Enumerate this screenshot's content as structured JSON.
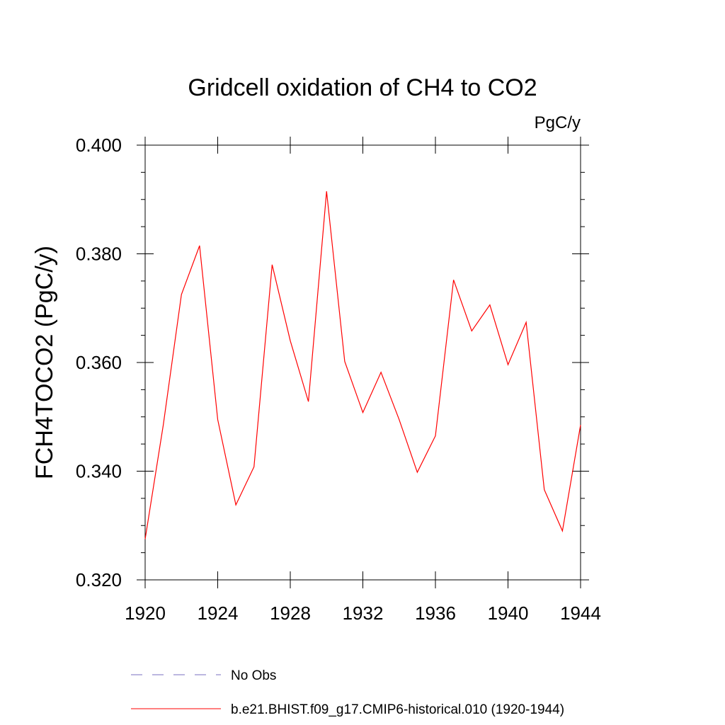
{
  "chart_data": {
    "type": "line",
    "title": "Gridcell oxidation of CH4 to CO2",
    "units": "PgC/y",
    "xlabel": "",
    "ylabel": "FCH4TOCO2  (PgC/y)",
    "xlim": [
      1920,
      1944
    ],
    "ylim": [
      0.32,
      0.4
    ],
    "x_ticks": [
      "1920",
      "1924",
      "1928",
      "1932",
      "1936",
      "1940",
      "1944"
    ],
    "y_ticks": [
      "0.320",
      "0.340",
      "0.360",
      "0.380",
      "0.400"
    ],
    "x": [
      1920,
      1921,
      1922,
      1923,
      1924,
      1925,
      1926,
      1927,
      1928,
      1929,
      1930,
      1931,
      1932,
      1933,
      1934,
      1935,
      1936,
      1937,
      1938,
      1939,
      1940,
      1941,
      1942,
      1943,
      1944
    ],
    "series": [
      {
        "name": "b.e21.BHIST.f09_g17.CMIP6-historical.010 (1920-1944)",
        "color": "#ff0000",
        "style": "solid",
        "values": [
          0.3275,
          0.3485,
          0.3725,
          0.3815,
          0.3495,
          0.3338,
          0.3408,
          0.378,
          0.364,
          0.3528,
          0.3915,
          0.3602,
          0.3508,
          0.3582,
          0.3495,
          0.3398,
          0.3465,
          0.3752,
          0.3658,
          0.3706,
          0.3596,
          0.3674,
          0.3366,
          0.329,
          0.3485
        ]
      }
    ],
    "legend": {
      "placement": "bottom",
      "entries": [
        {
          "label": "No Obs",
          "color": "#7a6fc0",
          "style": "dashed"
        },
        {
          "label": "b.e21.BHIST.f09_g17.CMIP6-historical.010 (1920-1944)",
          "color": "#ff0000",
          "style": "solid"
        }
      ]
    },
    "grid": false
  }
}
